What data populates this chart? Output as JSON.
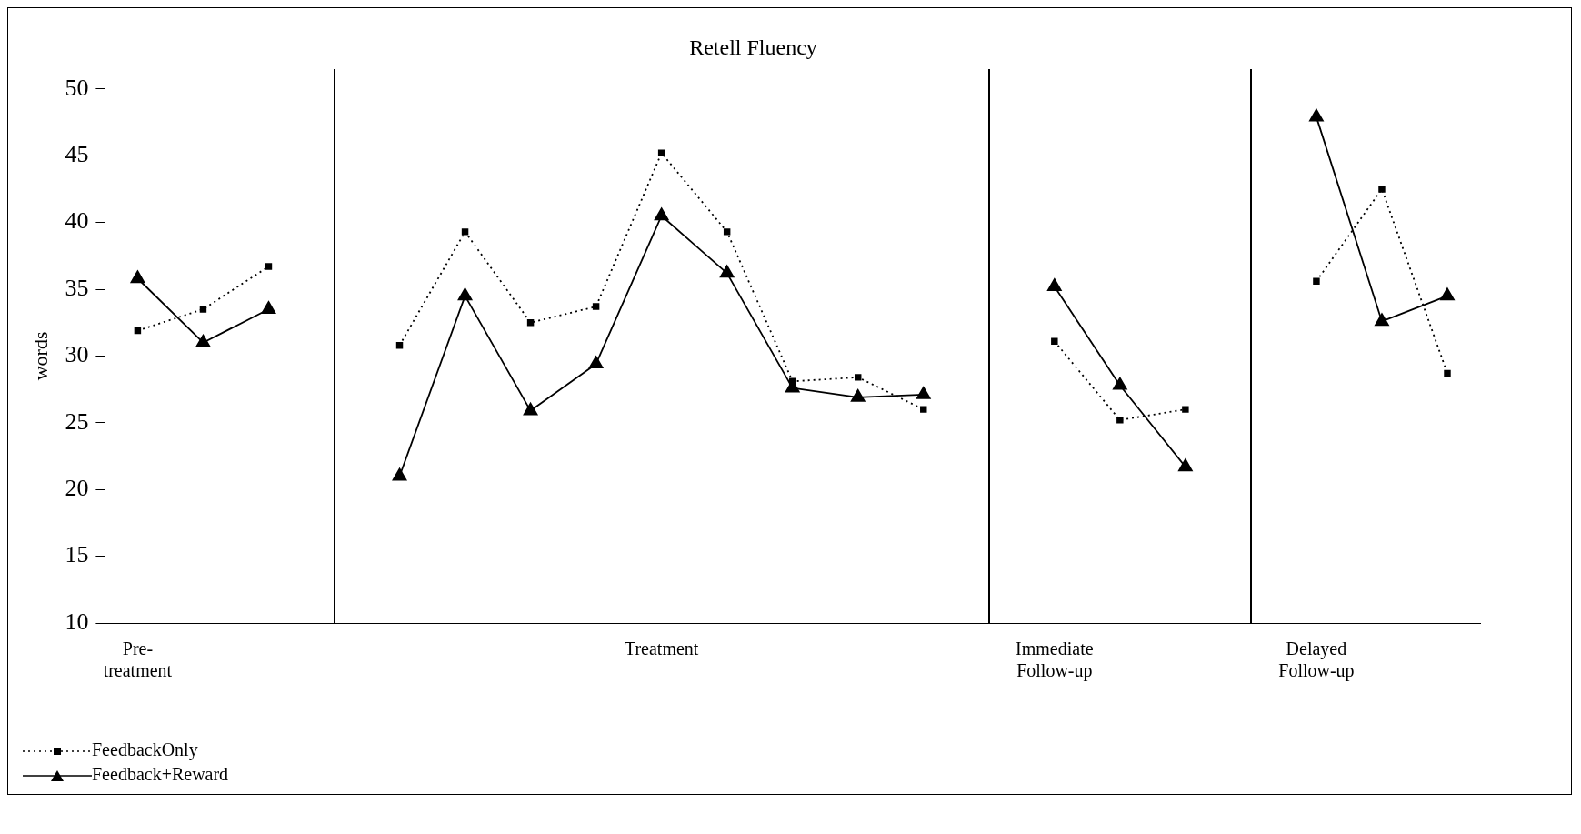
{
  "chart_data": {
    "type": "line",
    "title": "Retell Fluency",
    "ylabel": "words",
    "categories": [
      "Pre-\ntreatment",
      null,
      null,
      null,
      null,
      null,
      null,
      null,
      "Treatment",
      null,
      null,
      null,
      null,
      null,
      "Immediate\nFollow-up",
      null,
      null,
      null,
      "Delayed\nFollow-up",
      null,
      null
    ],
    "ylim": [
      10,
      50
    ],
    "yticks": [
      10,
      15,
      20,
      25,
      30,
      35,
      40,
      45,
      50
    ],
    "grid": false,
    "legend": "bottom left",
    "series": [
      {
        "name": "FeedbackOnly",
        "color": "#000000",
        "marker": "square",
        "line_style": "dotted",
        "values": [
          31.9,
          33.5,
          36.7,
          null,
          30.8,
          39.3,
          32.5,
          33.7,
          45.2,
          39.3,
          28.1,
          28.4,
          26.0,
          null,
          31.1,
          25.2,
          26.0,
          null,
          35.6,
          42.5,
          28.7
        ]
      },
      {
        "name": "Feedback+Reward",
        "color": "#000000",
        "marker": "triangle",
        "line_style": "solid",
        "values": [
          35.8,
          31.0,
          33.5,
          null,
          21.0,
          34.5,
          25.9,
          29.4,
          40.5,
          36.2,
          27.6,
          26.9,
          27.1,
          null,
          35.2,
          27.8,
          21.7,
          null,
          47.9,
          32.6,
          34.5
        ]
      }
    ]
  }
}
